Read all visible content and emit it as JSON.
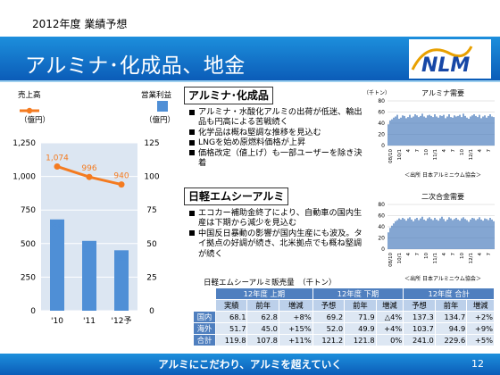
{
  "header": {
    "subtitle": "2012年度  業績予想",
    "title": "アルミナ･化成品、地金",
    "logo_text": "NLM"
  },
  "footer": {
    "slogan": "アルミにこだわり、アルミを超えていく",
    "page_number": "12"
  },
  "left_chart": {
    "left_legend": "売上高",
    "right_legend": "営業利益",
    "left_unit": "（億円）",
    "right_unit": "（億円）",
    "left_ticks": [
      "1,250",
      "1,000",
      "750",
      "500",
      "250",
      "0"
    ],
    "right_ticks": [
      "125",
      "100",
      "75",
      "50",
      "25",
      "0"
    ],
    "colors": {
      "bar": "#4f8fd6",
      "line": "#f47b20",
      "plot_bg": "#dce6f2"
    }
  },
  "chart_data": [
    {
      "type": "bar",
      "categories": [
        "'10",
        "'11",
        "'12予"
      ],
      "series": [
        {
          "name": "売上高",
          "type": "line",
          "values": [
            1074,
            996,
            940
          ],
          "axis": "left"
        },
        {
          "name": "営業利益",
          "type": "bar",
          "values": [
            68,
            52,
            45
          ],
          "axis": "right"
        }
      ],
      "ylim_left": [
        0,
        1250
      ],
      "ylim_right": [
        0,
        125
      ],
      "data_labels_line": [
        "1,074",
        "996",
        "940"
      ],
      "data_labels_bar": [
        "68",
        "52",
        "45"
      ]
    },
    {
      "type": "bar",
      "title": "アルミナ需要",
      "ylabel": "（千トン）",
      "ylim": [
        0,
        80
      ],
      "yticks": [
        "80",
        "60",
        "40",
        "20",
        "0"
      ],
      "xticks": [
        "08/10",
        "10/1",
        "4",
        "7",
        "10",
        "11/1",
        "4",
        "7",
        "10",
        "12/1",
        "4",
        "7"
      ],
      "note": "＜出所 日本アルミニウム協会＞",
      "values": [
        38,
        45,
        47,
        50,
        52,
        55,
        48,
        50,
        54,
        53,
        49,
        51,
        55,
        50,
        52,
        56,
        54,
        51,
        53,
        57,
        52,
        50,
        54,
        55,
        53,
        51,
        56,
        52,
        50,
        54,
        53,
        55,
        49,
        52,
        56,
        51,
        50,
        54,
        52,
        53,
        55,
        51,
        57,
        53,
        50,
        48,
        52,
        54,
        56,
        53,
        51,
        55,
        49,
        52,
        54,
        50,
        53,
        56,
        52,
        51
      ]
    },
    {
      "type": "bar",
      "title": "二次合金需要",
      "ylim": [
        0,
        80
      ],
      "yticks": [
        "80",
        "60",
        "40",
        "20",
        "0"
      ],
      "xticks": [
        "08/10",
        "10/1",
        "4",
        "7",
        "10",
        "11/1",
        "4",
        "7",
        "10",
        "12/1",
        "4",
        "7"
      ],
      "note": "＜出所 日本アルミニウム協会＞",
      "values": [
        30,
        38,
        42,
        46,
        50,
        52,
        55,
        53,
        56,
        54,
        51,
        55,
        57,
        53,
        50,
        54,
        56,
        52,
        55,
        58,
        53,
        51,
        55,
        57,
        54,
        52,
        56,
        53,
        51,
        55,
        58,
        54,
        50,
        53,
        57,
        55,
        52,
        54,
        56,
        53,
        51,
        55,
        57,
        54,
        52,
        49,
        53,
        56,
        55,
        52,
        54,
        57,
        53,
        51,
        55,
        54,
        52,
        56,
        53,
        50
      ]
    }
  ],
  "sections": {
    "alumina": {
      "heading": "アルミナ･化成品",
      "bullets": [
        "アルミナ・水酸化アルミの出荷が低迷、輸出品も円高による苦戦続く",
        "化学品は概ね堅調な推移を見込む",
        "LNGを始め原燃料価格が上昇",
        "価格改定（値上げ）も一部ユーザーを除き決着"
      ]
    },
    "ingot": {
      "heading": "日軽エムシーアルミ",
      "bullets": [
        "エコカー補助金終了により、自動車の国内生産は下期から減少を見込む",
        "中国反日暴動の影響が国内生産にも波及。タイ拠点の好調が続き、北米拠点でも概ね堅調が続く"
      ]
    }
  },
  "sales_table": {
    "caption": "日軽エムシーアルミ販売量",
    "unit": "（千トン）",
    "group_headers": [
      "12年度 上期",
      "12年度 下期",
      "12年度 合計"
    ],
    "sub_headers": [
      "実績",
      "前年",
      "増減",
      "予想",
      "前年",
      "増減",
      "予想",
      "前年",
      "増減"
    ],
    "rows": [
      {
        "label": "国内",
        "cells": [
          "68.1",
          "62.8",
          "+8%",
          "69.2",
          "71.9",
          "△4%",
          "137.3",
          "134.7",
          "+2%"
        ]
      },
      {
        "label": "海外",
        "cells": [
          "51.7",
          "45.0",
          "+15%",
          "52.0",
          "49.9",
          "+4%",
          "103.7",
          "94.9",
          "+9%"
        ]
      },
      {
        "label": "合計",
        "cells": [
          "119.8",
          "107.8",
          "+11%",
          "121.2",
          "121.8",
          "0%",
          "241.0",
          "229.6",
          "+5%"
        ]
      }
    ]
  }
}
